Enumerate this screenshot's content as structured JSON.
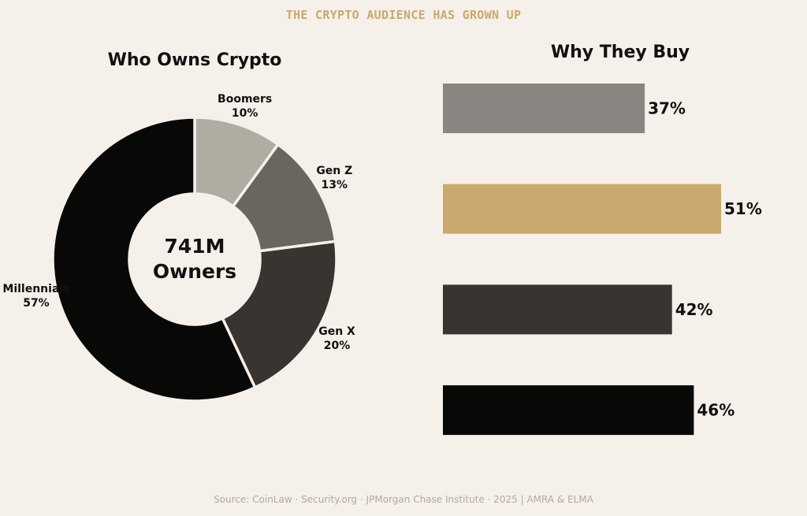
{
  "suptitle": "THE CRYPTO AUDIENCE HAS GROWN UP",
  "source": "Source: CoinLaw · Security.org · JPMorgan Chase Institute · 2025  |  AMRA & ELMA",
  "colors": {
    "background": "#f5f0e9",
    "accent": "#c9a96e",
    "source_text": "#b2aa9c",
    "text": "#111111"
  },
  "chart_data": [
    {
      "type": "pie",
      "style": "donut",
      "title": "Who Owns Crypto",
      "center_label": [
        "741M",
        "Owners"
      ],
      "start_angle_deg": 90,
      "direction": "clockwise",
      "slices": [
        {
          "label": "Boomers",
          "value": 10,
          "value_label": "10%",
          "color": "#b0aca1"
        },
        {
          "label": "Gen Z",
          "value": 13,
          "value_label": "13%",
          "color": "#6b6560"
        },
        {
          "label": "Gen X",
          "value": 20,
          "value_label": "20%",
          "color": "#3a3430"
        },
        {
          "label": "Millennials",
          "value": 57,
          "value_label": "57%",
          "color": "#080807"
        }
      ]
    },
    {
      "type": "bar",
      "orientation": "horizontal",
      "title": "Why They Buy",
      "xlim": [
        0,
        55
      ],
      "values": [
        37,
        51,
        42,
        46
      ],
      "value_labels": [
        "37%",
        "51%",
        "42%",
        "46%"
      ],
      "colors": [
        "#8a8580",
        "#c9a96e",
        "#3a3430",
        "#080807"
      ]
    }
  ]
}
